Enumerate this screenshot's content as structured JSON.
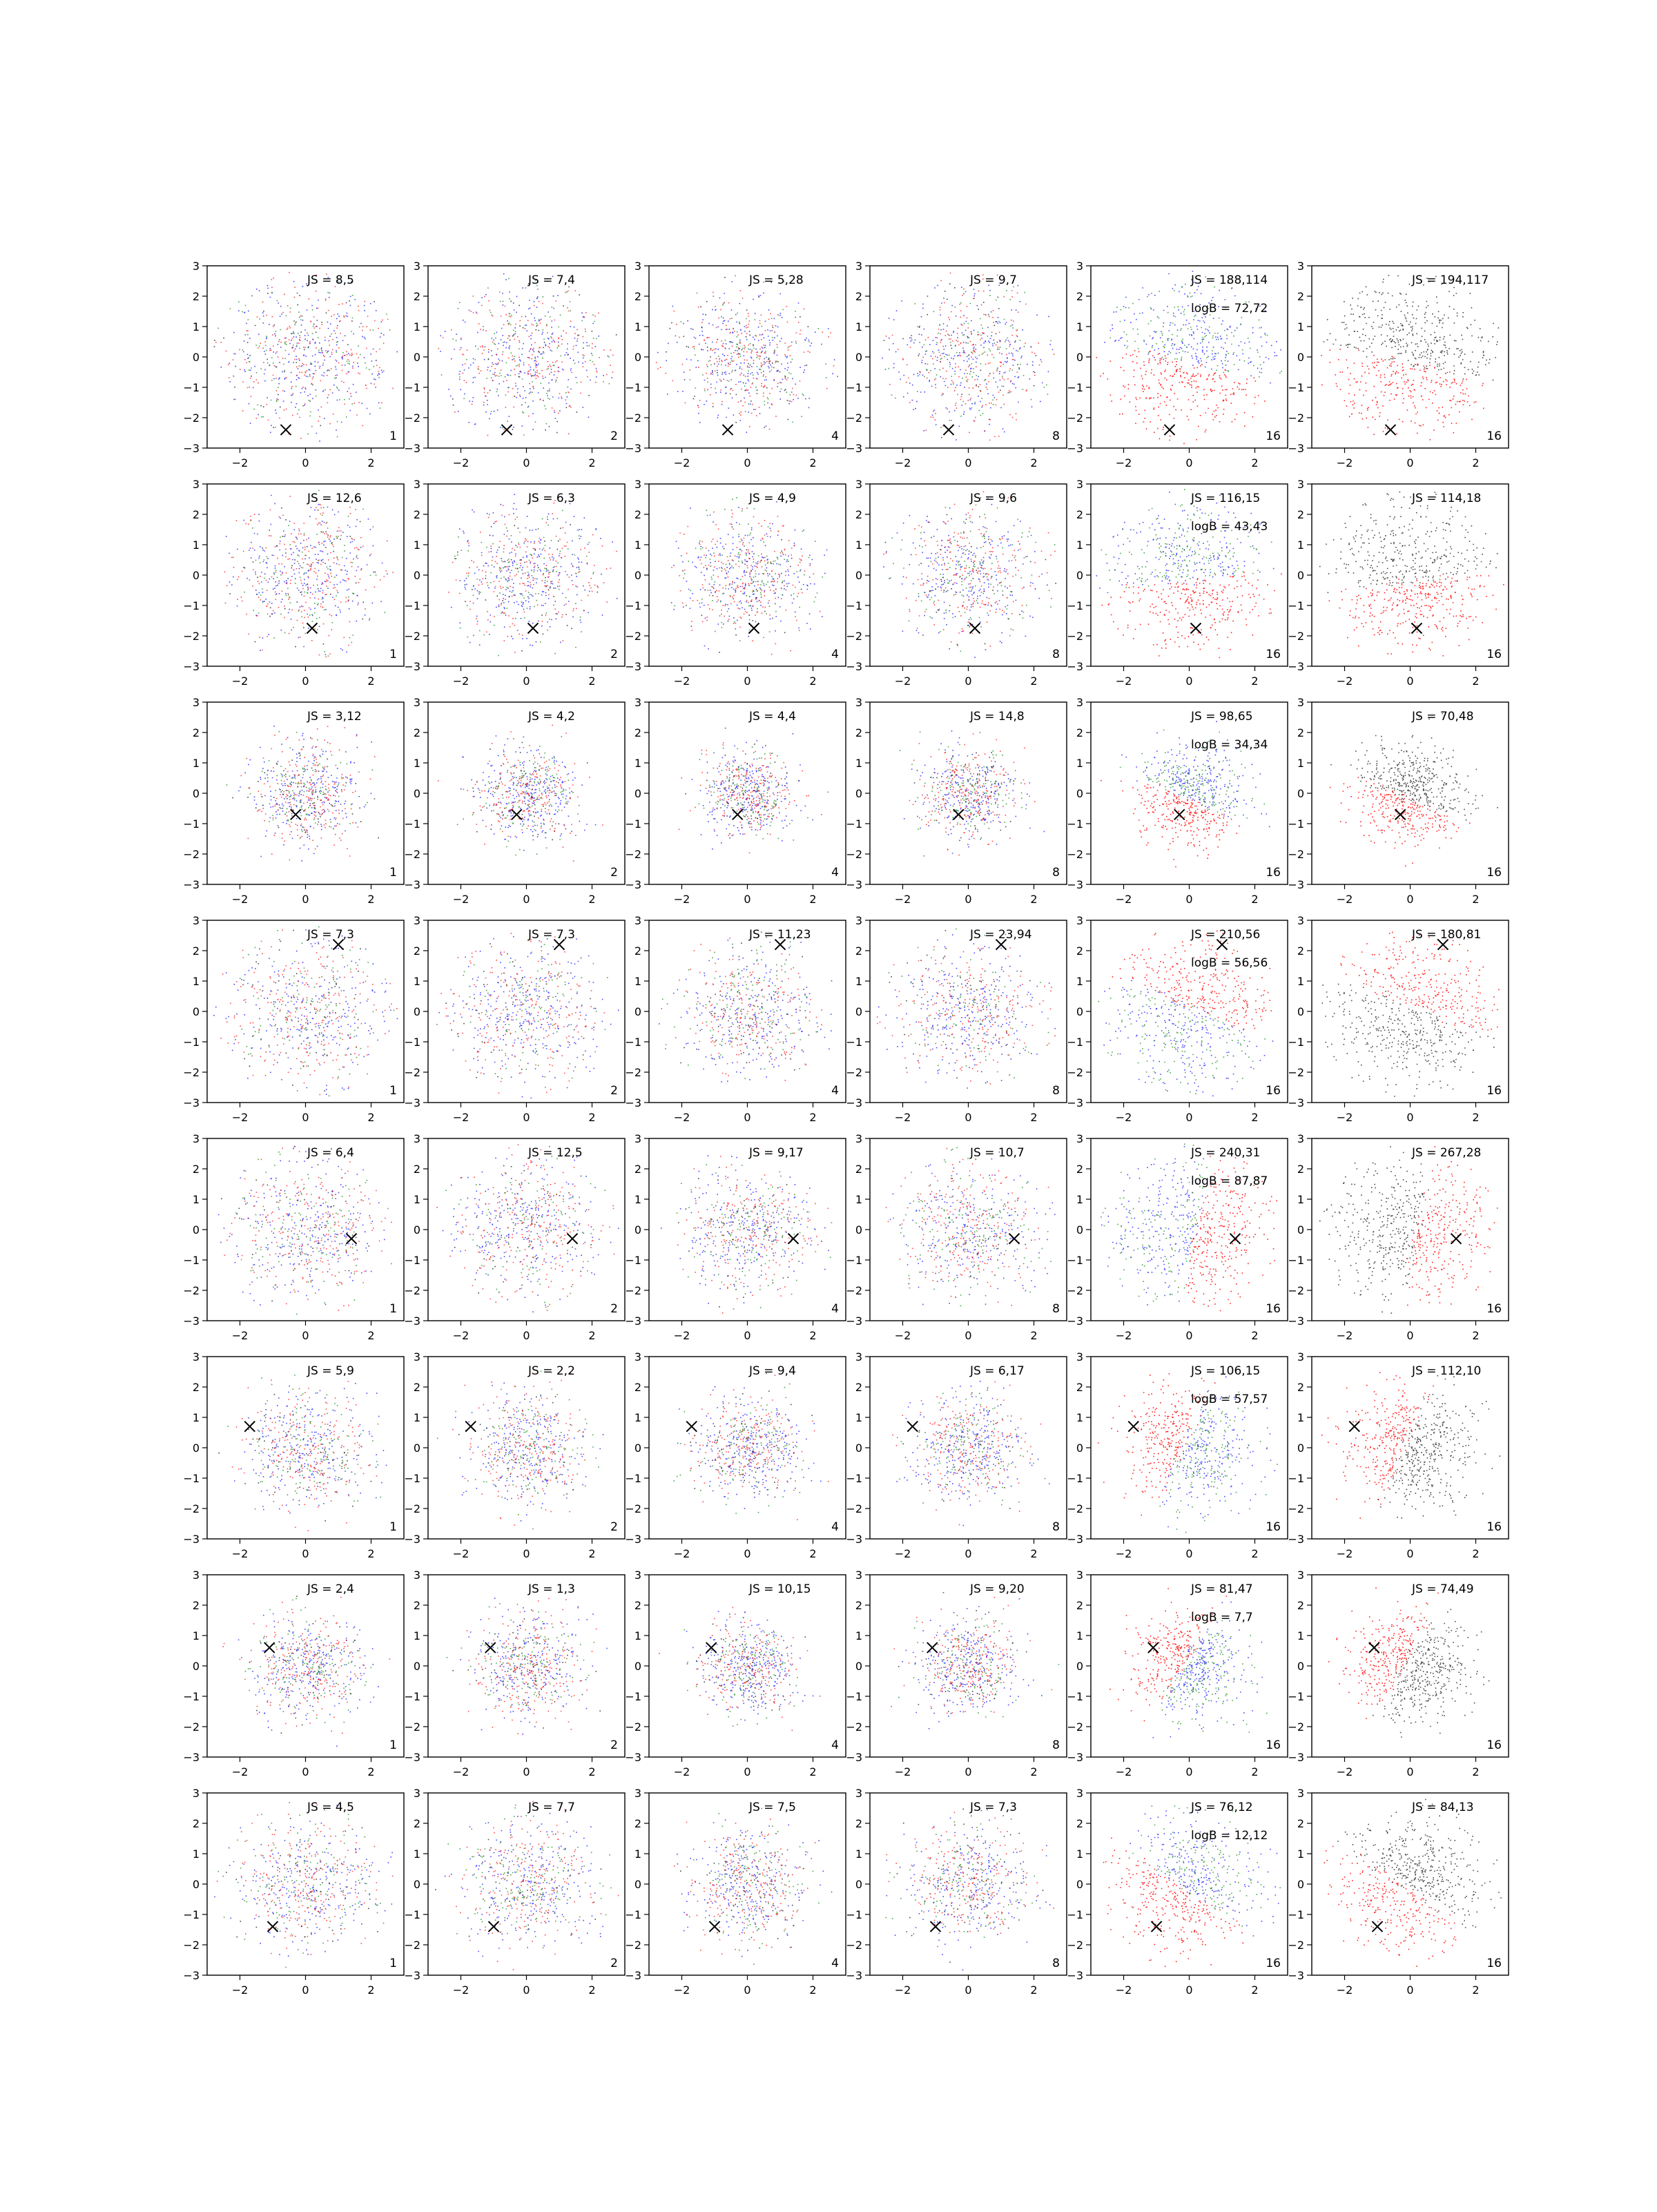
{
  "figure": {
    "rows": 8,
    "cols": 6,
    "type": "scatter",
    "axes": {
      "xlim": [
        -3,
        3
      ],
      "ylim": [
        -3,
        3
      ],
      "xticks": [
        -2,
        0,
        2
      ],
      "yticks": [
        -3,
        -2,
        -1,
        0,
        1,
        2,
        3
      ],
      "grid": false,
      "tick_labels_x": [
        "−2",
        "0",
        "2"
      ],
      "tick_labels_y": [
        "3",
        "2",
        "1",
        "0",
        "−1",
        "−2",
        "−3"
      ]
    },
    "column_corner_labels": [
      "1",
      "2",
      "4",
      "8",
      "16",
      "16"
    ],
    "marker": "x",
    "colors": {
      "blue": "#0000ff",
      "red": "#ff0000",
      "green": "#008000",
      "black": "#000000"
    }
  },
  "chart_data": [
    {
      "row": 1,
      "marker": [
        -0.6,
        -2.4
      ],
      "panels": [
        {
          "label": "JS = 8,5",
          "corner": "1"
        },
        {
          "label": "JS = 7,4",
          "corner": "2"
        },
        {
          "label": "JS = 5,28",
          "corner": "4"
        },
        {
          "label": "JS = 9,7",
          "corner": "8"
        },
        {
          "label": "JS = 188,114",
          "logB": "logB = 72,72",
          "corner": "16"
        },
        {
          "label": "JS = 194,117",
          "corner": "16"
        }
      ]
    },
    {
      "row": 2,
      "marker": [
        0.2,
        -1.75
      ],
      "panels": [
        {
          "label": "JS = 12,6",
          "corner": "1"
        },
        {
          "label": "JS = 6,3",
          "corner": "2"
        },
        {
          "label": "JS = 4,9",
          "corner": "4"
        },
        {
          "label": "JS = 9,6",
          "corner": "8"
        },
        {
          "label": "JS = 116,15",
          "logB": "logB = 43,43",
          "corner": "16"
        },
        {
          "label": "JS = 114,18",
          "corner": "16"
        }
      ]
    },
    {
      "row": 3,
      "marker": [
        -0.3,
        -0.7
      ],
      "panels": [
        {
          "label": "JS = 3,12",
          "corner": "1"
        },
        {
          "label": "JS = 4,2",
          "corner": "2"
        },
        {
          "label": "JS = 4,4",
          "corner": "4"
        },
        {
          "label": "JS = 14,8",
          "corner": "8"
        },
        {
          "label": "JS = 98,65",
          "logB": "logB = 34,34",
          "corner": "16"
        },
        {
          "label": "JS = 70,48",
          "corner": "16"
        }
      ]
    },
    {
      "row": 4,
      "marker": [
        1.0,
        2.2
      ],
      "panels": [
        {
          "label": "JS = 7,3",
          "corner": "1"
        },
        {
          "label": "JS = 7,3",
          "corner": "2"
        },
        {
          "label": "JS = 11,23",
          "corner": "4"
        },
        {
          "label": "JS = 23,94",
          "corner": "8"
        },
        {
          "label": "JS = 210,56",
          "logB": "logB = 56,56",
          "corner": "16"
        },
        {
          "label": "JS = 180,81",
          "corner": "16"
        }
      ]
    },
    {
      "row": 5,
      "marker": [
        1.4,
        -0.3
      ],
      "panels": [
        {
          "label": "JS = 6,4",
          "corner": "1"
        },
        {
          "label": "JS = 12,5",
          "corner": "2"
        },
        {
          "label": "JS = 9,17",
          "corner": "4"
        },
        {
          "label": "JS = 10,7",
          "corner": "8"
        },
        {
          "label": "JS = 240,31",
          "logB": "logB = 87,87",
          "corner": "16"
        },
        {
          "label": "JS = 267,28",
          "corner": "16"
        }
      ]
    },
    {
      "row": 6,
      "marker": [
        -1.7,
        0.7
      ],
      "panels": [
        {
          "label": "JS = 5,9",
          "corner": "1"
        },
        {
          "label": "JS = 2,2",
          "corner": "2"
        },
        {
          "label": "JS = 9,4",
          "corner": "4"
        },
        {
          "label": "JS = 6,17",
          "corner": "8"
        },
        {
          "label": "JS = 106,15",
          "logB": "logB = 57,57",
          "corner": "16"
        },
        {
          "label": "JS = 112,10",
          "corner": "16"
        }
      ]
    },
    {
      "row": 7,
      "marker": [
        -1.1,
        0.6
      ],
      "panels": [
        {
          "label": "JS = 2,4",
          "corner": "1"
        },
        {
          "label": "JS = 1,3",
          "corner": "2"
        },
        {
          "label": "JS = 10,15",
          "corner": "4"
        },
        {
          "label": "JS = 9,20",
          "corner": "8"
        },
        {
          "label": "JS = 81,47",
          "logB": "logB = 7,7",
          "corner": "16"
        },
        {
          "label": "JS = 74,49",
          "corner": "16"
        }
      ]
    },
    {
      "row": 8,
      "marker": [
        -1.0,
        -1.4
      ],
      "panels": [
        {
          "label": "JS = 4,5",
          "corner": "1"
        },
        {
          "label": "JS = 7,7",
          "corner": "2"
        },
        {
          "label": "JS = 7,5",
          "corner": "4"
        },
        {
          "label": "JS = 7,3",
          "corner": "8"
        },
        {
          "label": "JS = 76,12",
          "logB": "logB = 12,12",
          "corner": "16"
        },
        {
          "label": "JS = 84,13",
          "corner": "16"
        }
      ]
    }
  ]
}
